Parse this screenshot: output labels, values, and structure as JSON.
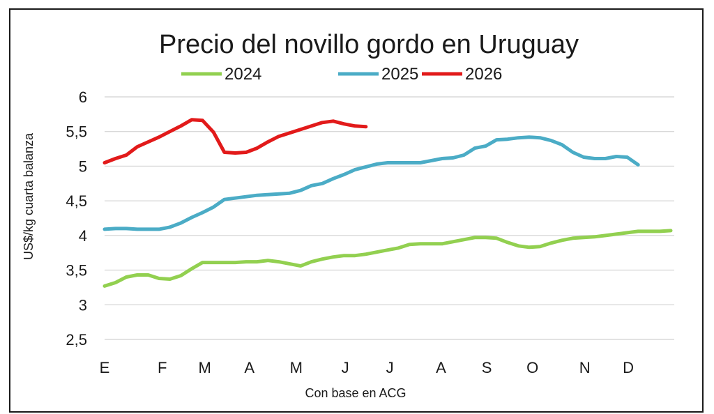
{
  "chart_data": {
    "type": "line",
    "title": "Precio del novillo gordo en Uruguay",
    "ylabel": "US$/kg cuarta balanza",
    "xlabel": "Con base en ACG",
    "ylim": [
      2.5,
      6
    ],
    "yticks": [
      {
        "v": 2.5,
        "label": "2,5"
      },
      {
        "v": 3,
        "label": "3"
      },
      {
        "v": 3.5,
        "label": "3,5"
      },
      {
        "v": 4,
        "label": "4"
      },
      {
        "v": 4.5,
        "label": "4,5"
      },
      {
        "v": 5,
        "label": "5"
      },
      {
        "v": 5.5,
        "label": "5,5"
      },
      {
        "v": 6,
        "label": "6"
      }
    ],
    "xlim": [
      0,
      52
    ],
    "xticks": [
      {
        "v": 0,
        "label": "E"
      },
      {
        "v": 5.3,
        "label": "F"
      },
      {
        "v": 9.2,
        "label": "M"
      },
      {
        "v": 13.3,
        "label": "A"
      },
      {
        "v": 17.6,
        "label": "M"
      },
      {
        "v": 22.1,
        "label": "J"
      },
      {
        "v": 26.2,
        "label": "J"
      },
      {
        "v": 30.9,
        "label": "A"
      },
      {
        "v": 35.1,
        "label": "S"
      },
      {
        "v": 39.3,
        "label": "O"
      },
      {
        "v": 44.1,
        "label": "N"
      },
      {
        "v": 48.1,
        "label": "D"
      }
    ],
    "grid": true,
    "legend_position": "top",
    "series": [
      {
        "name": "2024",
        "color": "#92d050",
        "x": [
          0,
          1,
          2,
          3,
          4,
          5,
          6,
          7,
          8,
          9,
          10,
          11,
          12,
          13,
          14,
          15,
          16,
          17,
          18,
          19,
          20,
          21,
          22,
          23,
          24,
          25,
          26,
          27,
          28,
          29,
          30,
          31,
          32,
          33,
          34,
          35,
          36,
          37,
          38,
          39,
          40,
          41,
          42,
          43,
          44,
          45,
          46,
          47,
          48,
          49,
          50,
          51,
          52
        ],
        "values": [
          3.27,
          3.32,
          3.4,
          3.43,
          3.43,
          3.38,
          3.37,
          3.42,
          3.52,
          3.61,
          3.61,
          3.61,
          3.61,
          3.62,
          3.62,
          3.64,
          3.62,
          3.59,
          3.56,
          3.62,
          3.66,
          3.69,
          3.71,
          3.71,
          3.73,
          3.76,
          3.79,
          3.82,
          3.87,
          3.88,
          3.88,
          3.88,
          3.91,
          3.94,
          3.97,
          3.97,
          3.96,
          3.9,
          3.85,
          3.83,
          3.84,
          3.89,
          3.93,
          3.96,
          3.97,
          3.98,
          4.0,
          4.02,
          4.04,
          4.06,
          4.06,
          4.06,
          4.07
        ]
      },
      {
        "name": "2025",
        "color": "#4bacc6",
        "x": [
          0,
          1,
          2,
          3,
          4,
          5,
          6,
          7,
          8,
          9,
          10,
          11,
          12,
          13,
          14,
          15,
          16,
          17,
          18,
          19,
          20,
          21,
          22,
          23,
          24,
          25,
          26,
          27,
          28,
          29,
          30,
          31,
          32,
          33,
          34,
          35,
          36,
          37,
          38,
          39,
          40,
          41,
          42,
          43,
          44,
          45,
          46,
          47,
          48,
          49
        ],
        "values": [
          4.09,
          4.1,
          4.1,
          4.09,
          4.09,
          4.09,
          4.12,
          4.18,
          4.26,
          4.33,
          4.41,
          4.52,
          4.54,
          4.56,
          4.58,
          4.59,
          4.6,
          4.61,
          4.65,
          4.72,
          4.75,
          4.82,
          4.88,
          4.95,
          4.99,
          5.03,
          5.05,
          5.05,
          5.05,
          5.05,
          5.08,
          5.11,
          5.12,
          5.16,
          5.26,
          5.29,
          5.38,
          5.39,
          5.41,
          5.42,
          5.41,
          5.37,
          5.31,
          5.2,
          5.13,
          5.11,
          5.11,
          5.14,
          5.13,
          5.02
        ]
      },
      {
        "name": "2026",
        "color": "#e21a1a",
        "x": [
          0,
          1,
          2,
          3,
          4,
          5,
          6,
          7,
          8,
          9,
          10,
          11,
          12,
          13,
          14,
          15,
          16,
          17,
          18,
          19,
          20,
          21,
          22,
          23,
          24
        ],
        "values": [
          5.05,
          5.11,
          5.16,
          5.28,
          5.35,
          5.42,
          5.5,
          5.58,
          5.67,
          5.66,
          5.49,
          5.2,
          5.19,
          5.2,
          5.26,
          5.35,
          5.43,
          5.48,
          5.53,
          5.58,
          5.63,
          5.65,
          5.61,
          5.58,
          5.57
        ]
      }
    ]
  }
}
